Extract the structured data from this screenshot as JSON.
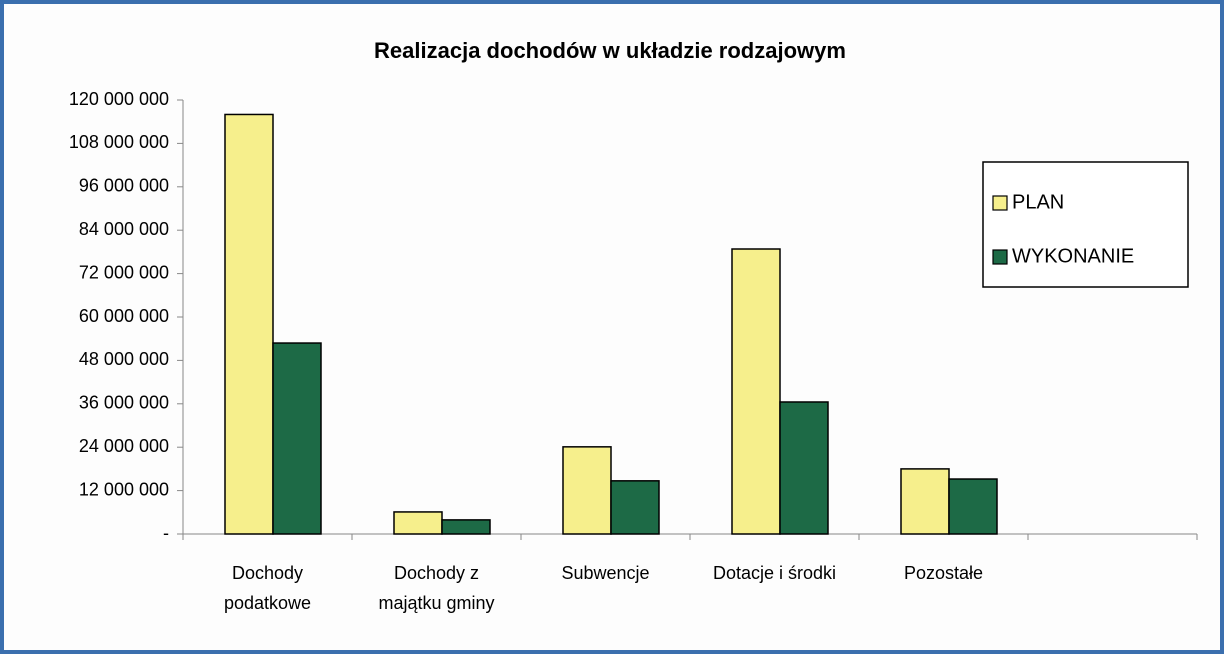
{
  "chart_data": {
    "type": "bar",
    "title": "Realizacja dochodów w układzie rodzajowym",
    "categories": [
      [
        "Dochody",
        "podatkowe"
      ],
      [
        "Dochody z",
        "majątku gminy"
      ],
      [
        "Subwencje"
      ],
      [
        "Dotacje i środki"
      ],
      [
        "Pozostałe"
      ],
      null
    ],
    "series": [
      {
        "name": "PLAN",
        "color": "#f6ef8c",
        "values": [
          116000000,
          6100000,
          24100000,
          78800000,
          18000000,
          null
        ]
      },
      {
        "name": "WYKONANIE",
        "color": "#1d6a46",
        "values": [
          52800000,
          3900000,
          14700000,
          36500000,
          15200000,
          null
        ]
      }
    ],
    "ylim": [
      0,
      120000000
    ],
    "yticks": [
      {
        "value": 0,
        "label": "-"
      },
      {
        "value": 12000000,
        "label": "12 000 000"
      },
      {
        "value": 24000000,
        "label": "24 000 000"
      },
      {
        "value": 36000000,
        "label": "36 000 000"
      },
      {
        "value": 48000000,
        "label": "48 000 000"
      },
      {
        "value": 60000000,
        "label": "60 000 000"
      },
      {
        "value": 72000000,
        "label": "72 000 000"
      },
      {
        "value": 84000000,
        "label": "84 000 000"
      },
      {
        "value": 96000000,
        "label": "96 000 000"
      },
      {
        "value": 108000000,
        "label": "108 000 000"
      },
      {
        "value": 120000000,
        "label": "120 000 000"
      }
    ],
    "grid": false,
    "legend": "right"
  }
}
